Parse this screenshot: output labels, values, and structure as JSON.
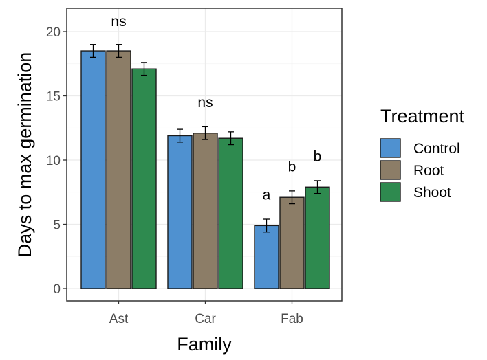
{
  "chart_data": {
    "type": "bar",
    "xlabel": "Family",
    "ylabel": "Days to max germination",
    "ylim": [
      0,
      21
    ],
    "yticks": [
      0,
      5,
      10,
      15,
      20
    ],
    "grid": true,
    "legend_position": "right",
    "legend_title": "Treatment",
    "categories": [
      "Ast",
      "Car",
      "Fab"
    ],
    "series": [
      {
        "name": "Control",
        "color": "#4f91d0",
        "values": [
          18.5,
          11.9,
          4.9
        ],
        "errors": [
          0.5,
          0.5,
          0.5
        ]
      },
      {
        "name": "Root",
        "color": "#8c7d67",
        "values": [
          18.5,
          12.1,
          7.1
        ],
        "errors": [
          0.5,
          0.5,
          0.5
        ]
      },
      {
        "name": "Shoot",
        "color": "#2e8a4f",
        "values": [
          17.1,
          11.7,
          7.9
        ],
        "errors": [
          0.5,
          0.5,
          0.5
        ]
      }
    ],
    "annotations": [
      {
        "text": "ns",
        "category": "Ast",
        "y": 20.8
      },
      {
        "text": "ns",
        "category": "Car",
        "y": 14.5
      },
      {
        "text": "a",
        "category": "Fab",
        "series": "Control",
        "y": 7.3
      },
      {
        "text": "b",
        "category": "Fab",
        "series": "Root",
        "y": 9.5
      },
      {
        "text": "b",
        "category": "Fab",
        "series": "Shoot",
        "y": 10.3
      }
    ]
  }
}
